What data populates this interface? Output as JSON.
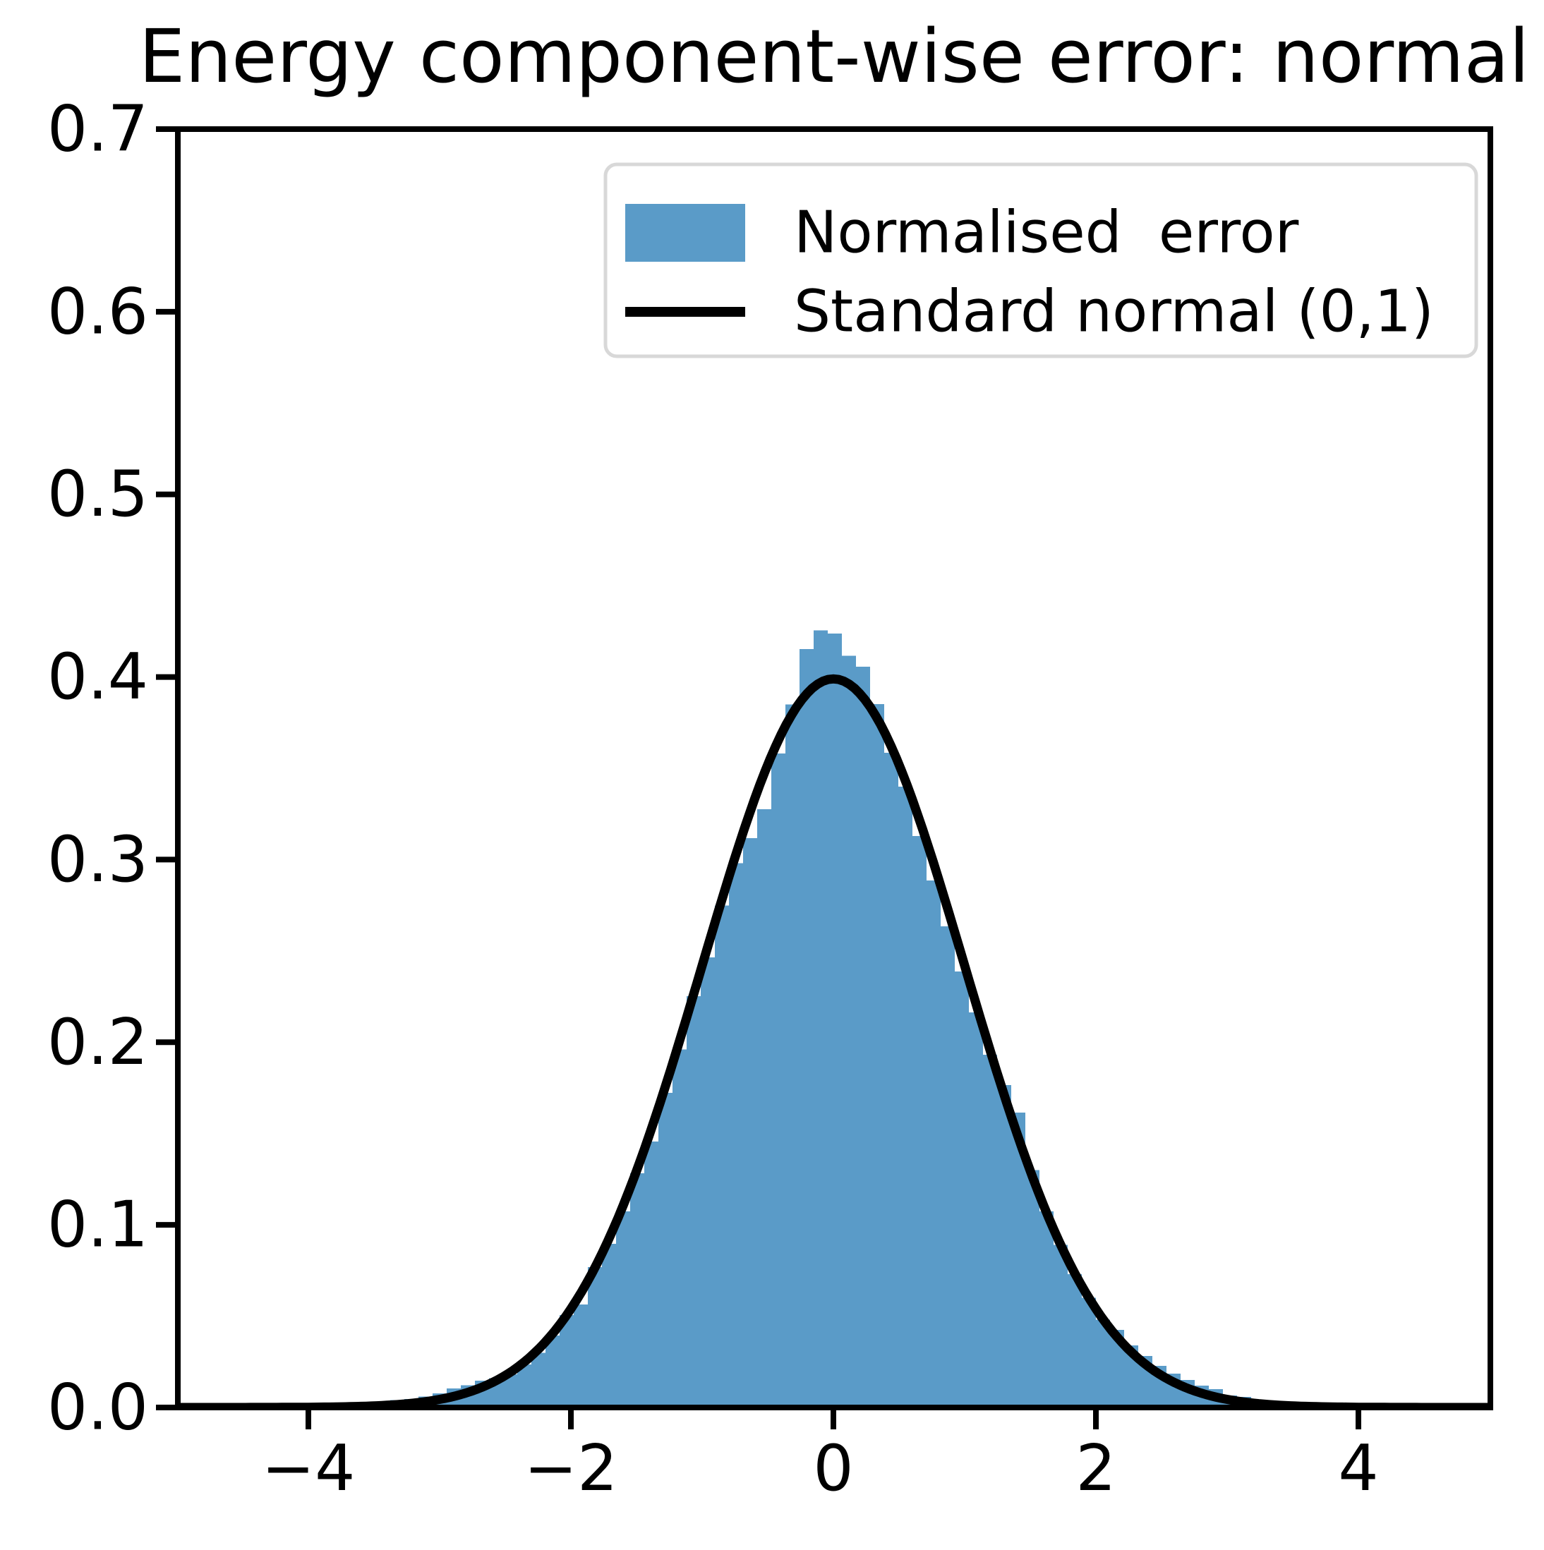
{
  "title": "Energy component-wise error: normal",
  "legend": {
    "items": [
      {
        "label": "Normalised  error",
        "type": "patch",
        "color": "#5a9bc8"
      },
      {
        "label": "Standard normal (0,1)",
        "type": "line",
        "color": "#000000"
      }
    ],
    "border_color": "#d8d8d8",
    "background": "#ffffff"
  },
  "axes": {
    "x_ticks": {
      "values": [
        -4,
        -2,
        0,
        2,
        4
      ],
      "labels": [
        "−4",
        "−2",
        "0",
        "2",
        "4"
      ]
    },
    "y_ticks": {
      "values": [
        0.0,
        0.1,
        0.2,
        0.3,
        0.4,
        0.5,
        0.6,
        0.7
      ],
      "labels": [
        "0.0",
        "0.1",
        "0.2",
        "0.3",
        "0.4",
        "0.5",
        "0.6",
        "0.7"
      ]
    },
    "xlim": [
      -5,
      5
    ],
    "ylim": [
      0,
      0.7
    ],
    "grid": false,
    "spine_color": "#000000"
  },
  "chart_data": {
    "type": "bar",
    "subtype": "histogram-with-density-curve",
    "title": "Energy component-wise error: normal",
    "xlabel": "",
    "ylabel": "",
    "xlim": [
      -5,
      5
    ],
    "ylim": [
      0,
      0.7
    ],
    "legend_position": "upper right",
    "histogram": {
      "name": "Normalised  error",
      "color": "#5a9bc8",
      "density": true,
      "bin_start": -3.3755,
      "bin_width": 0.1075,
      "heights": [
        0.004,
        0.0047,
        0.006,
        0.0078,
        0.0104,
        0.0122,
        0.0147,
        0.016,
        0.0181,
        0.0235,
        0.03,
        0.0394,
        0.0506,
        0.0564,
        0.0769,
        0.0896,
        0.1074,
        0.1282,
        0.1456,
        0.1723,
        0.196,
        0.2252,
        0.2464,
        0.2749,
        0.2981,
        0.3117,
        0.3275,
        0.3581,
        0.385,
        0.4152,
        0.4256,
        0.4238,
        0.4117,
        0.4056,
        0.3851,
        0.3585,
        0.34,
        0.3129,
        0.2885,
        0.2634,
        0.2387,
        0.2163,
        0.1931,
        0.1765,
        0.1614,
        0.13,
        0.1074,
        0.089,
        0.073,
        0.06,
        0.048,
        0.0425,
        0.034,
        0.0282,
        0.0228,
        0.0185,
        0.0151,
        0.012,
        0.01,
        0.0066,
        0.0058,
        0.004,
        0.003
      ]
    },
    "curve": {
      "name": "Standard normal (0,1)",
      "color": "#000000",
      "distribution": "gaussian",
      "mean": 0,
      "std": 1,
      "peak_value": 0.3989,
      "x_range": [
        -5,
        5
      ]
    }
  }
}
